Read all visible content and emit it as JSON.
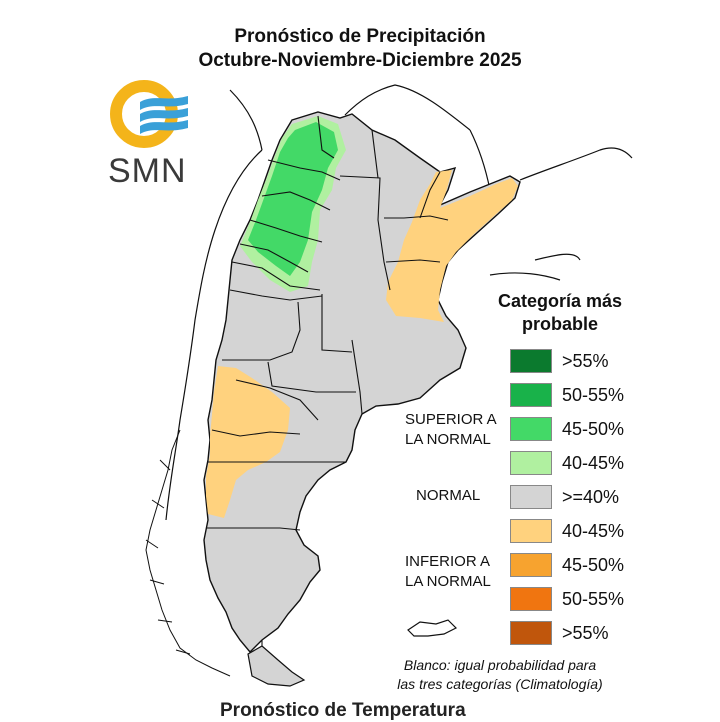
{
  "title_line1": "Pronóstico de Precipitación",
  "title_line2": "Octubre-Noviembre-Diciembre 2025",
  "logo_text": "SMN",
  "legend": {
    "title_line1": "Categoría más",
    "title_line2": "probable",
    "items": [
      {
        "label": ">55%",
        "color": "#0b7a2e"
      },
      {
        "label": "50-55%",
        "color": "#19b24a"
      },
      {
        "label": "45-50%",
        "color": "#43d967"
      },
      {
        "label": "40-45%",
        "color": "#b0f0a0"
      },
      {
        "label": ">=40%",
        "color": "#d4d4d4"
      },
      {
        "label": "40-45%",
        "color": "#ffd27e"
      },
      {
        "label": "45-50%",
        "color": "#f7a32f"
      },
      {
        "label": "50-55%",
        "color": "#f07510"
      },
      {
        "label": ">55%",
        "color": "#c0560c"
      }
    ],
    "category_superior": [
      "SUPERIOR A",
      "LA NORMAL"
    ],
    "category_normal": "NORMAL",
    "category_inferior": [
      "INFERIOR A",
      "LA NORMAL"
    ]
  },
  "note_line1": "Blanco: igual probabilidad para",
  "note_line2": "las tres categorías (Climatología)",
  "next_title_partial": "Pronóstico de Temperatura"
}
